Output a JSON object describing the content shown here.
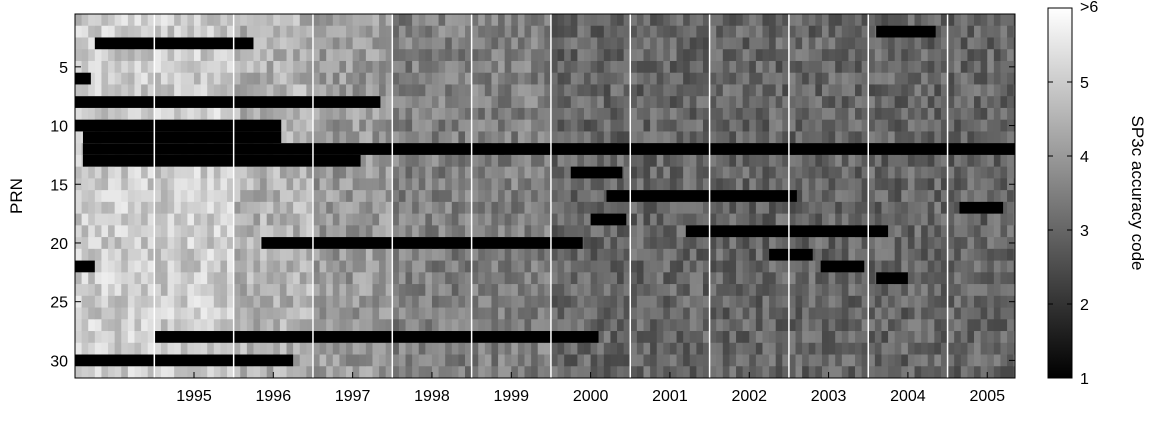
{
  "chart_data": {
    "type": "heatmap",
    "title": "",
    "xlabel": "",
    "ylabel": "PRN",
    "x_tick_labels": [
      "1995",
      "1996",
      "1997",
      "1998",
      "1999",
      "2000",
      "2001",
      "2002",
      "2003",
      "2004",
      "2005"
    ],
    "x_range": [
      1994.0,
      2005.85
    ],
    "y_tick_labels": [
      "5",
      "10",
      "15",
      "20",
      "25",
      "30"
    ],
    "y_tick_values": [
      5,
      10,
      15,
      20,
      25,
      30
    ],
    "y_range": [
      0.5,
      31.5
    ],
    "y_reversed": true,
    "colorbar": {
      "label": "SP3c accuracy code",
      "tick_labels": [
        "1",
        "2",
        "3",
        "4",
        "5",
        ">6"
      ],
      "tick_values": [
        1,
        2,
        3,
        4,
        5,
        6
      ],
      "range": [
        1,
        6
      ],
      "colormap": "gray"
    },
    "year_boundaries": [
      1995,
      1996,
      1997,
      1998,
      1999,
      2000,
      2001,
      2002,
      2003,
      2004,
      2005
    ],
    "background_code_by_period": [
      {
        "from": 1994.0,
        "to": 1996.0,
        "value": 5.0
      },
      {
        "from": 1996.0,
        "to": 1997.0,
        "value": 4.5
      },
      {
        "from": 1997.0,
        "to": 1998.0,
        "value": 4.0
      },
      {
        "from": 1998.0,
        "to": 2000.0,
        "value": 3.5
      },
      {
        "from": 2000.0,
        "to": 2005.85,
        "value": 3.0
      }
    ],
    "low_code_periods": [
      {
        "prn": 3,
        "from": 1994.25,
        "to": 1996.25,
        "value": 1
      },
      {
        "prn": 2,
        "from": 2004.1,
        "to": 2004.85,
        "value": 1
      },
      {
        "prn": 6,
        "from": 1994.0,
        "to": 1994.2,
        "value": 1
      },
      {
        "prn": 8,
        "from": 1994.0,
        "to": 1997.85,
        "value": 1
      },
      {
        "prn": 10,
        "from": 1994.0,
        "to": 1996.6,
        "value": 1
      },
      {
        "prn": 11,
        "from": 1994.1,
        "to": 1996.6,
        "value": 1
      },
      {
        "prn": 12,
        "from": 1994.1,
        "to": 2000.0,
        "value": 1
      },
      {
        "prn": 13,
        "from": 1994.1,
        "to": 1997.6,
        "value": 1
      },
      {
        "prn": 12,
        "from": 2000.0,
        "to": 2005.85,
        "value": 1
      },
      {
        "prn": 14,
        "from": 2000.25,
        "to": 2000.9,
        "value": 1
      },
      {
        "prn": 16,
        "from": 2000.7,
        "to": 2003.1,
        "value": 1
      },
      {
        "prn": 17,
        "from": 2005.15,
        "to": 2005.7,
        "value": 1
      },
      {
        "prn": 18,
        "from": 2000.5,
        "to": 2000.95,
        "value": 1
      },
      {
        "prn": 19,
        "from": 2001.7,
        "to": 2004.25,
        "value": 1
      },
      {
        "prn": 20,
        "from": 1996.35,
        "to": 2000.4,
        "value": 1
      },
      {
        "prn": 21,
        "from": 2002.75,
        "to": 2003.3,
        "value": 1
      },
      {
        "prn": 22,
        "from": 1994.0,
        "to": 1994.25,
        "value": 1
      },
      {
        "prn": 22,
        "from": 2003.4,
        "to": 2003.95,
        "value": 1
      },
      {
        "prn": 23,
        "from": 2004.1,
        "to": 2004.5,
        "value": 1
      },
      {
        "prn": 28,
        "from": 1995.0,
        "to": 2000.6,
        "value": 1
      },
      {
        "prn": 30,
        "from": 1994.0,
        "to": 1996.75,
        "value": 1
      }
    ]
  }
}
